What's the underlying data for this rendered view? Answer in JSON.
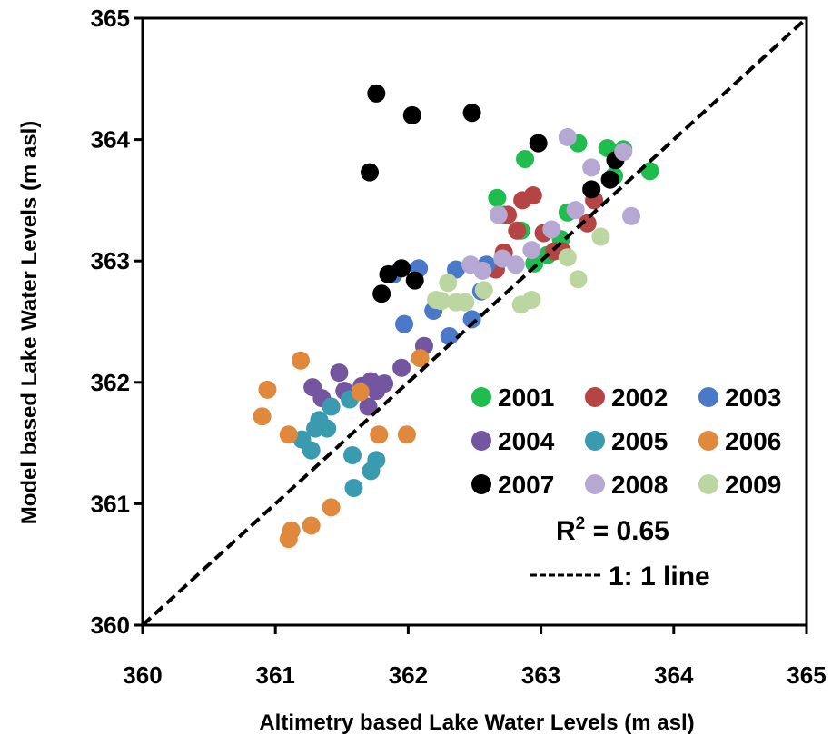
{
  "chart_data": {
    "type": "scatter",
    "xlabel": "Altimetry based Lake Water Levels (m asl)",
    "ylabel": "Model based Lake Water Levels (m asl)",
    "xlim": [
      360,
      365
    ],
    "ylim": [
      360,
      365
    ],
    "xticks": [
      "360",
      "361",
      "362",
      "363",
      "364",
      "365"
    ],
    "yticks": [
      "360",
      "361",
      "362",
      "363",
      "364",
      "365"
    ],
    "grid": false,
    "legend_position": "bottom-right",
    "r2": {
      "label": "R",
      "sup": "2",
      "value": " = 0.65"
    },
    "one_to_one": {
      "label": "1: 1 line",
      "x": [
        360,
        365
      ],
      "y": [
        360,
        365
      ]
    },
    "series": [
      {
        "name": "2001",
        "color": "#1fbd4e",
        "points": [
          [
            362.67,
            363.52
          ],
          [
            362.72,
            363.38
          ],
          [
            362.88,
            363.84
          ],
          [
            362.85,
            363.25
          ],
          [
            362.95,
            362.98
          ],
          [
            363.05,
            363.05
          ],
          [
            363.15,
            363.18
          ],
          [
            363.2,
            363.4
          ],
          [
            363.28,
            363.97
          ],
          [
            363.5,
            363.93
          ],
          [
            363.55,
            363.7
          ],
          [
            363.62,
            363.92
          ],
          [
            363.82,
            363.74
          ]
        ]
      },
      {
        "name": "2002",
        "color": "#b54444",
        "points": [
          [
            362.66,
            362.93
          ],
          [
            362.72,
            363.07
          ],
          [
            362.75,
            363.38
          ],
          [
            362.82,
            363.25
          ],
          [
            362.86,
            363.5
          ],
          [
            362.94,
            363.54
          ],
          [
            363.02,
            363.23
          ],
          [
            363.1,
            363.08
          ],
          [
            363.16,
            363.08
          ],
          [
            363.35,
            363.31
          ],
          [
            363.4,
            363.5
          ]
        ]
      },
      {
        "name": "2003",
        "color": "#4a79c8",
        "points": [
          [
            361.89,
            362.89
          ],
          [
            361.97,
            362.48
          ],
          [
            362.08,
            362.94
          ],
          [
            362.19,
            362.59
          ],
          [
            362.31,
            362.38
          ],
          [
            362.36,
            362.93
          ],
          [
            362.48,
            362.52
          ],
          [
            362.55,
            362.75
          ],
          [
            362.59,
            362.97
          ]
        ]
      },
      {
        "name": "2004",
        "color": "#7456a0",
        "points": [
          [
            361.28,
            361.96
          ],
          [
            361.35,
            361.87
          ],
          [
            361.48,
            362.08
          ],
          [
            361.52,
            361.93
          ],
          [
            361.65,
            361.97
          ],
          [
            361.7,
            361.8
          ],
          [
            361.72,
            362.01
          ],
          [
            361.76,
            361.93
          ],
          [
            361.82,
            361.99
          ],
          [
            361.95,
            362.12
          ],
          [
            362.12,
            362.3
          ]
        ]
      },
      {
        "name": "2005",
        "color": "#3a9bb0",
        "points": [
          [
            361.2,
            361.53
          ],
          [
            361.27,
            361.44
          ],
          [
            361.3,
            361.62
          ],
          [
            361.33,
            361.69
          ],
          [
            361.39,
            361.62
          ],
          [
            361.42,
            361.8
          ],
          [
            361.56,
            361.86
          ],
          [
            361.58,
            361.4
          ],
          [
            361.59,
            361.13
          ],
          [
            361.72,
            361.27
          ],
          [
            361.76,
            361.36
          ]
        ]
      },
      {
        "name": "2006",
        "color": "#e0883c",
        "points": [
          [
            360.9,
            361.72
          ],
          [
            360.94,
            361.94
          ],
          [
            361.1,
            361.57
          ],
          [
            361.1,
            360.71
          ],
          [
            361.12,
            360.78
          ],
          [
            361.19,
            362.18
          ],
          [
            361.27,
            360.82
          ],
          [
            361.42,
            360.97
          ],
          [
            361.64,
            361.92
          ],
          [
            361.78,
            361.57
          ],
          [
            361.99,
            361.57
          ],
          [
            362.09,
            362.2
          ]
        ]
      },
      {
        "name": "2007",
        "color": "#000000",
        "points": [
          [
            361.71,
            363.73
          ],
          [
            361.76,
            364.38
          ],
          [
            361.8,
            362.73
          ],
          [
            361.85,
            362.89
          ],
          [
            361.95,
            362.94
          ],
          [
            362.03,
            364.2
          ],
          [
            362.05,
            362.84
          ],
          [
            362.48,
            364.22
          ],
          [
            362.98,
            363.97
          ],
          [
            363.38,
            363.59
          ],
          [
            363.52,
            363.67
          ],
          [
            363.56,
            363.83
          ]
        ]
      },
      {
        "name": "2008",
        "color": "#b7a8d3",
        "points": [
          [
            362.47,
            362.97
          ],
          [
            362.56,
            362.92
          ],
          [
            362.68,
            363.38
          ],
          [
            362.71,
            363.02
          ],
          [
            362.81,
            362.97
          ],
          [
            362.93,
            363.09
          ],
          [
            363.08,
            363.26
          ],
          [
            363.2,
            364.02
          ],
          [
            363.26,
            363.42
          ],
          [
            363.38,
            363.77
          ],
          [
            363.62,
            363.9
          ],
          [
            363.68,
            363.37
          ]
        ]
      },
      {
        "name": "2009",
        "color": "#bcd6a2",
        "points": [
          [
            362.21,
            362.68
          ],
          [
            362.25,
            362.67
          ],
          [
            362.3,
            362.82
          ],
          [
            362.36,
            362.66
          ],
          [
            362.43,
            362.66
          ],
          [
            362.57,
            362.76
          ],
          [
            362.85,
            362.64
          ],
          [
            362.93,
            362.68
          ],
          [
            363.2,
            363.03
          ],
          [
            363.28,
            362.85
          ],
          [
            363.45,
            363.2
          ]
        ]
      }
    ]
  }
}
